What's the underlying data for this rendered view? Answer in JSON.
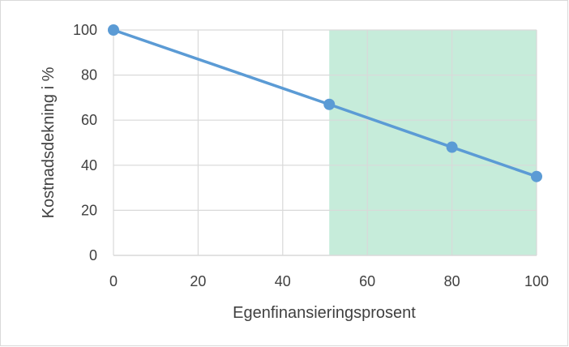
{
  "chart_data": {
    "type": "line",
    "title": "",
    "xlabel": "Egenfinansieringsprosent",
    "ylabel": "Kostnadsdekning i %",
    "xlim": [
      0,
      100
    ],
    "ylim": [
      0,
      100
    ],
    "xticks": [
      0,
      20,
      40,
      60,
      80,
      100
    ],
    "yticks": [
      0,
      20,
      40,
      60,
      80,
      100
    ],
    "x_tick_labels": [
      "0",
      "20",
      "40",
      "60",
      "80",
      "100"
    ],
    "y_tick_labels": [
      "0",
      "20",
      "40",
      "60",
      "80",
      "100"
    ],
    "grid": true,
    "series": [
      {
        "x": [
          0,
          51,
          80,
          100
        ],
        "y": [
          100,
          67,
          48,
          35
        ],
        "color": "#5b9bd5"
      }
    ],
    "shaded_region": {
      "x": [
        51,
        100
      ],
      "y": [
        0,
        100
      ],
      "color": "#c6ecda"
    },
    "colors": {
      "line": "#5b9bd5",
      "marker": "#5b9bd5",
      "shade": "#c6ecda",
      "grid": "#d9d9d9",
      "text": "#404040"
    }
  }
}
